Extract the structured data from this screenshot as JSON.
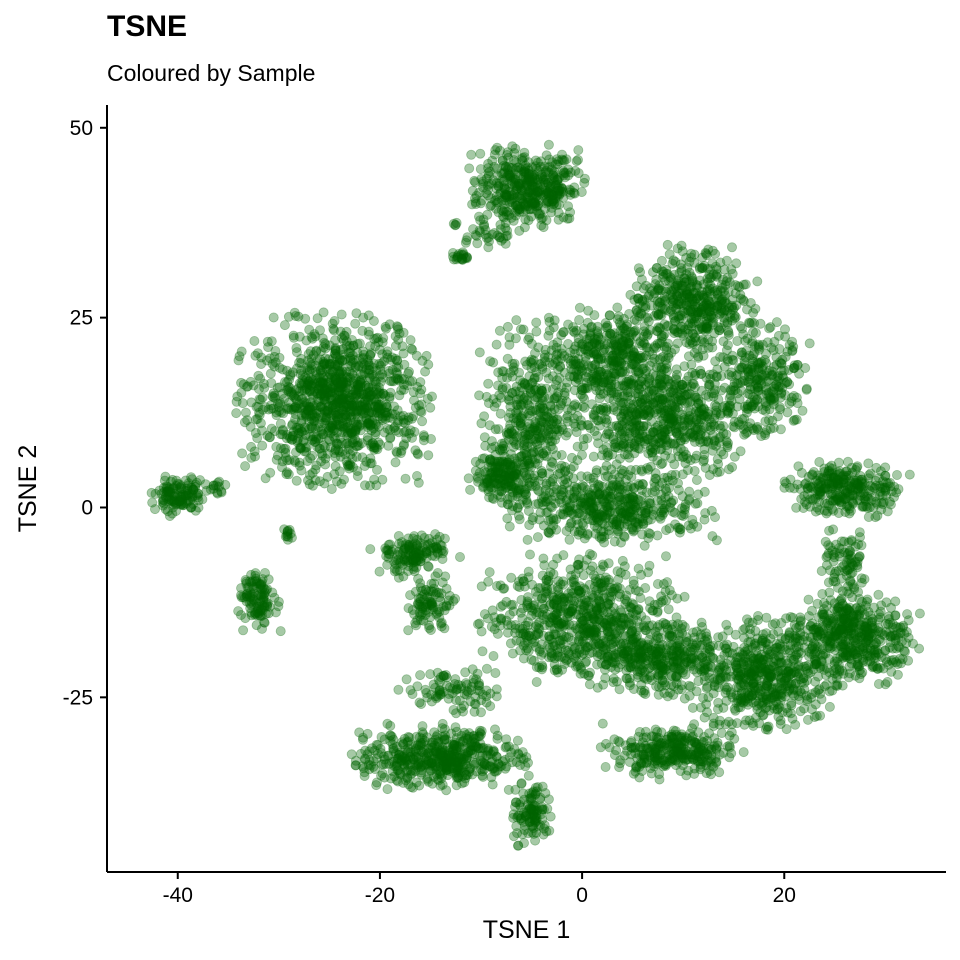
{
  "chart_data": {
    "type": "scatter",
    "title": "TSNE",
    "subtitle": "Coloured by Sample",
    "xlabel": "TSNE 1",
    "ylabel": "TSNE 2",
    "xlim": [
      -47,
      36
    ],
    "ylim": [
      -48,
      53
    ],
    "x_ticks": [
      -40,
      -20,
      0,
      20
    ],
    "x_tick_labels": [
      "-40",
      "-20",
      "0",
      "20"
    ],
    "y_ticks": [
      -25,
      0,
      25,
      50
    ],
    "y_tick_labels": [
      "-25",
      "0",
      "25",
      "50"
    ],
    "grid": false,
    "legend": "none",
    "point_color": "#006400",
    "point_opacity": 0.35,
    "clusters": [
      {
        "cx": -5.5,
        "cy": 42,
        "rx": 4.5,
        "ry": 4.5,
        "n": 420
      },
      {
        "cx": -9,
        "cy": 36,
        "rx": 2,
        "ry": 1.5,
        "n": 30
      },
      {
        "cx": -12,
        "cy": 33,
        "rx": 1,
        "ry": 0.6,
        "n": 20
      },
      {
        "cx": -12.5,
        "cy": 37.2,
        "rx": 0.3,
        "ry": 0.4,
        "n": 4
      },
      {
        "cx": -24.5,
        "cy": 14,
        "rx": 7.5,
        "ry": 9,
        "n": 1100
      },
      {
        "cx": -40,
        "cy": 1.5,
        "rx": 2.5,
        "ry": 2.2,
        "n": 120
      },
      {
        "cx": -36,
        "cy": 2.5,
        "rx": 1.2,
        "ry": 1.2,
        "n": 15
      },
      {
        "cx": -29,
        "cy": -3.5,
        "rx": 0.5,
        "ry": 1.2,
        "n": 12
      },
      {
        "cx": -32,
        "cy": -12,
        "rx": 1.7,
        "ry": 3.6,
        "n": 110
      },
      {
        "cx": -16.5,
        "cy": -6,
        "rx": 3.5,
        "ry": 2.5,
        "n": 140
      },
      {
        "cx": -15,
        "cy": -13,
        "rx": 2,
        "ry": 3.5,
        "n": 90
      },
      {
        "cx": -13,
        "cy": -24,
        "rx": 4,
        "ry": 2.5,
        "n": 90
      },
      {
        "cx": -14,
        "cy": -33,
        "rx": 7,
        "ry": 3.5,
        "n": 500
      },
      {
        "cx": -5,
        "cy": -40,
        "rx": 1.8,
        "ry": 3.5,
        "n": 110
      },
      {
        "cx": -5,
        "cy": 12,
        "rx": 4,
        "ry": 10,
        "n": 400
      },
      {
        "cx": -8,
        "cy": 4,
        "rx": 2.5,
        "ry": 3,
        "n": 150
      },
      {
        "cx": 3,
        "cy": 20,
        "rx": 5,
        "ry": 5,
        "n": 350
      },
      {
        "cx": 11,
        "cy": 27,
        "rx": 5,
        "ry": 6,
        "n": 450
      },
      {
        "cx": 8,
        "cy": 12,
        "rx": 9,
        "ry": 7,
        "n": 700
      },
      {
        "cx": 18,
        "cy": 17,
        "rx": 3.5,
        "ry": 6,
        "n": 220
      },
      {
        "cx": 26,
        "cy": 2.5,
        "rx": 5,
        "ry": 3,
        "n": 280
      },
      {
        "cx": 3,
        "cy": 0,
        "rx": 8,
        "ry": 4,
        "n": 450
      },
      {
        "cx": 0,
        "cy": -15,
        "rx": 8,
        "ry": 7,
        "n": 700
      },
      {
        "cx": 8,
        "cy": -20,
        "rx": 5,
        "ry": 4,
        "n": 300
      },
      {
        "cx": 9,
        "cy": -32,
        "rx": 6,
        "ry": 3,
        "n": 300
      },
      {
        "cx": 18,
        "cy": -22,
        "rx": 6,
        "ry": 6,
        "n": 550
      },
      {
        "cx": 27,
        "cy": -17,
        "rx": 5,
        "ry": 5,
        "n": 450
      },
      {
        "cx": 26,
        "cy": -7,
        "rx": 2,
        "ry": 3.5,
        "n": 80
      }
    ]
  }
}
